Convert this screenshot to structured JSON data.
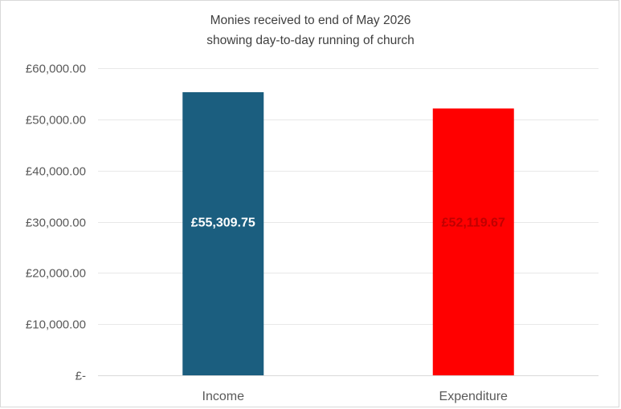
{
  "chart_data": {
    "type": "bar",
    "title": "Monies received to end of May 2026",
    "subtitle": "showing day-to-day running of church",
    "categories": [
      "Income",
      "Expenditure"
    ],
    "values": [
      55309.75,
      52119.67
    ],
    "data_labels": [
      "£55,309.75",
      "£52,119.67"
    ],
    "bar_colors": [
      "#1b5e7f",
      "#ff0000"
    ],
    "data_label_colors": [
      "#ffffff",
      "#c00000"
    ],
    "xlabel": "",
    "ylabel": "",
    "ylim": [
      0,
      60000
    ],
    "y_ticks": [
      0,
      10000,
      20000,
      30000,
      40000,
      50000,
      60000
    ],
    "y_tick_labels": [
      "£-",
      "£10,000.00",
      "£20,000.00",
      "£30,000.00",
      "£40,000.00",
      "£50,000.00",
      "£60,000.00"
    ],
    "grid": true,
    "legend": "none"
  }
}
